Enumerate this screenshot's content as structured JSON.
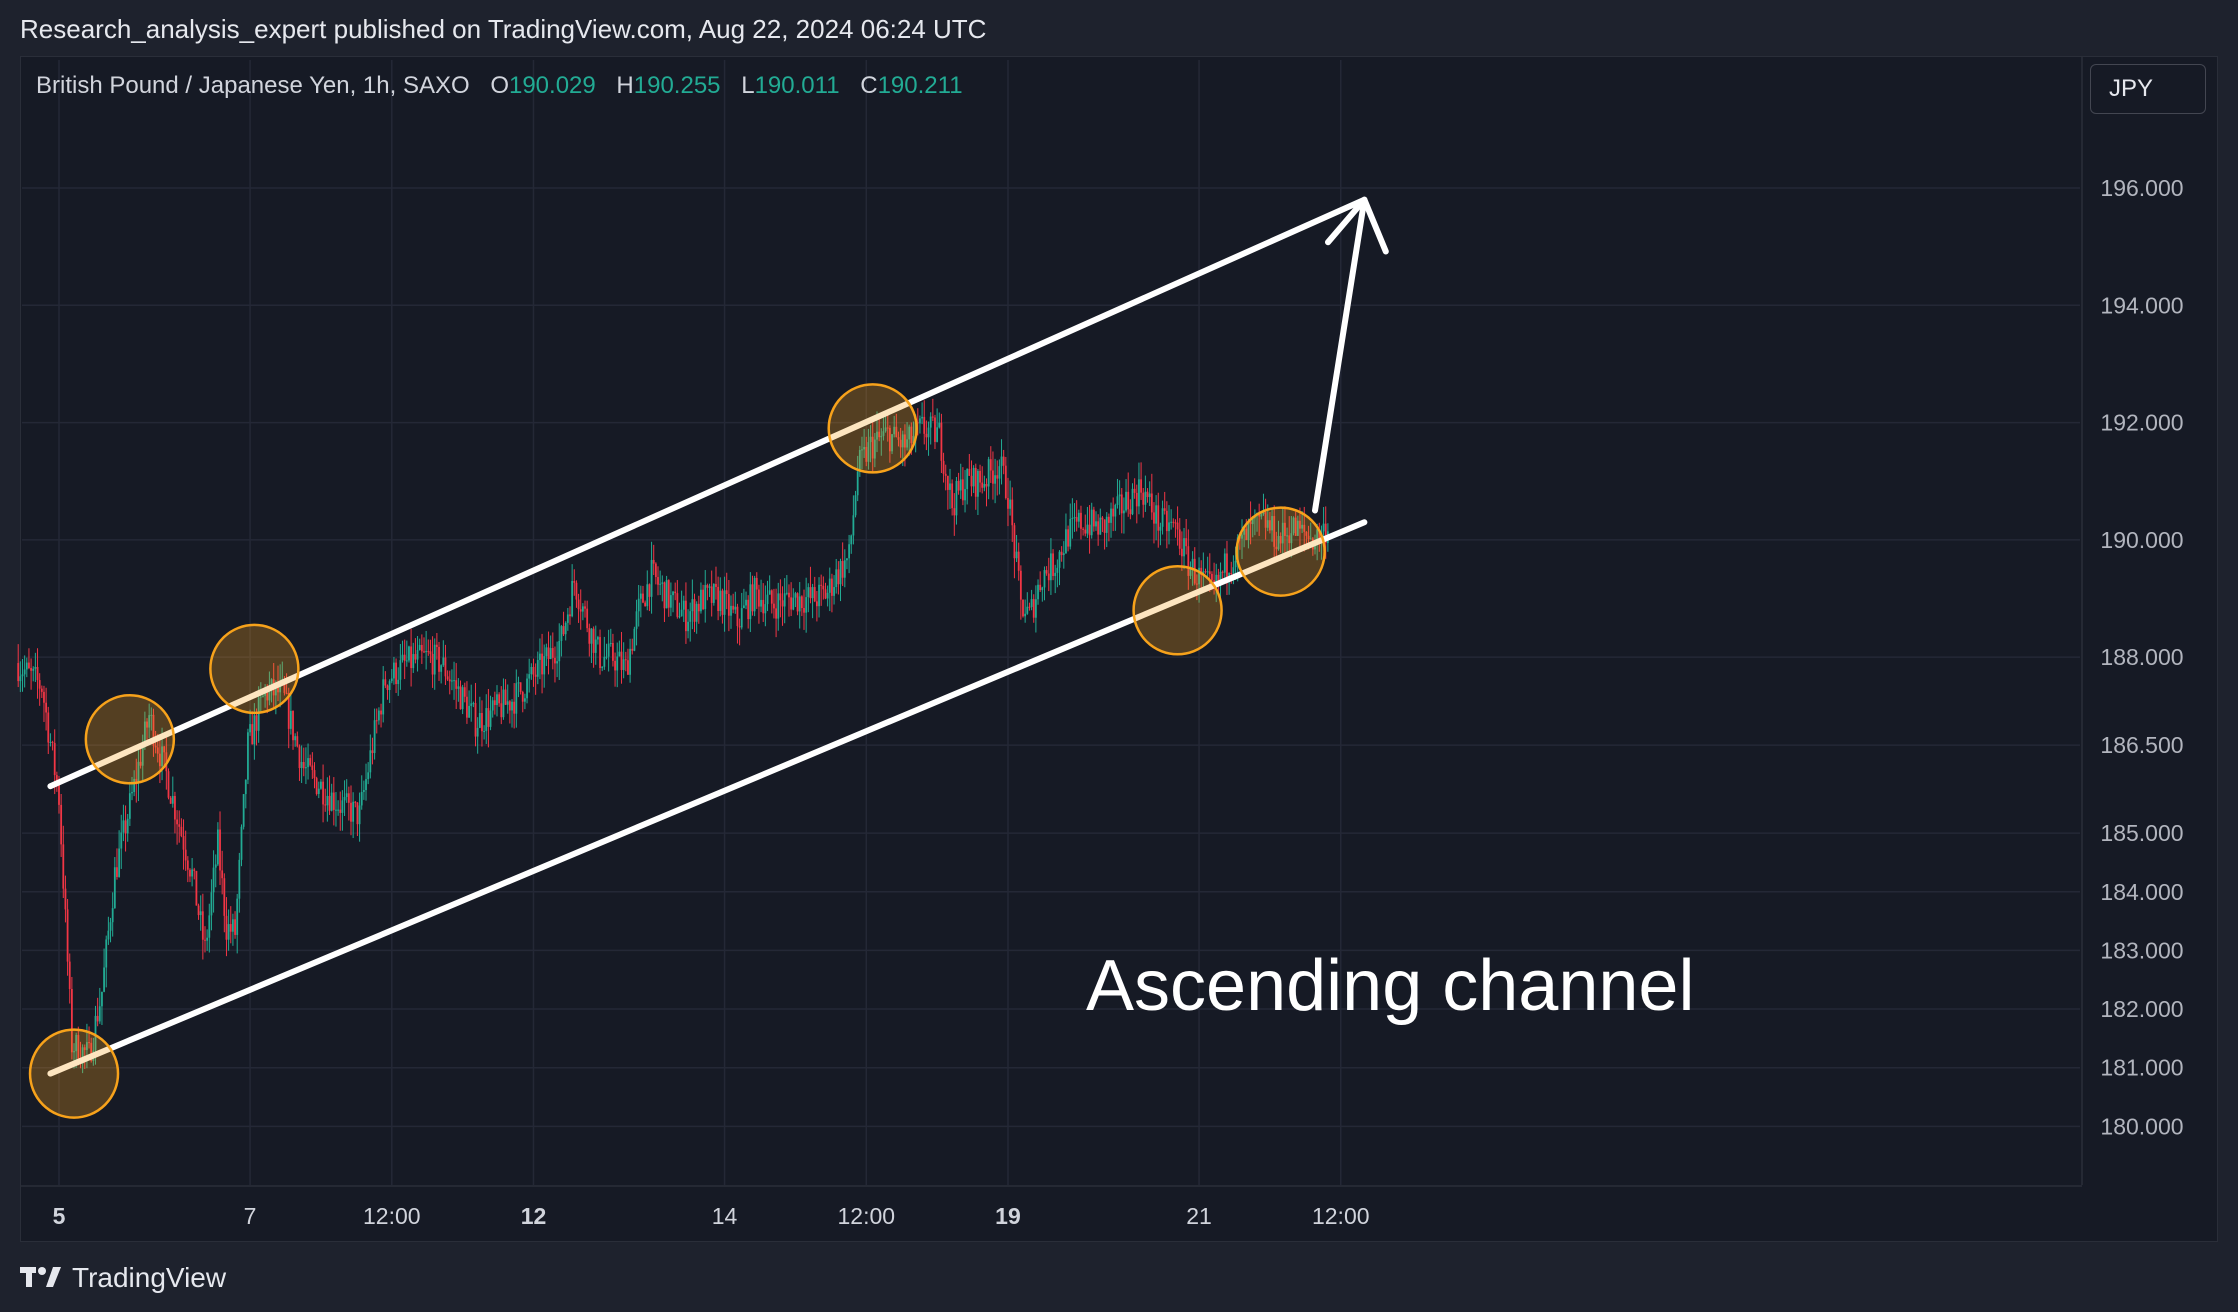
{
  "header": {
    "published": "Research_analysis_expert published on TradingView.com, Aug 22, 2024 06:24 UTC"
  },
  "legend": {
    "symbol": "British Pound / Japanese Yen, 1h, SAXO",
    "o_label": "O",
    "o_value": "190.029",
    "h_label": "H",
    "h_value": "190.255",
    "l_label": "L",
    "l_value": "190.011",
    "c_label": "C",
    "c_value": "190.211"
  },
  "currency_button": "JPY",
  "annotation": "Ascending channel",
  "brand": {
    "name": "TradingView"
  },
  "colors": {
    "background": "#161a25",
    "up": "#22ab94",
    "down": "#f23645",
    "channel": "#ffffff",
    "circle": "#f7a21b"
  },
  "chart_data": {
    "type": "candlestick",
    "title": "British Pound / Japanese Yen, 1h, SAXO",
    "ylim": [
      179.0,
      197.5
    ],
    "y_ticks": [
      "196.000",
      "194.000",
      "192.000",
      "190.000",
      "188.000",
      "186.500",
      "185.000",
      "184.000",
      "183.000",
      "182.000",
      "181.000",
      "180.000"
    ],
    "y_tick_values": [
      196.0,
      194.0,
      192.0,
      190.0,
      188.0,
      186.5,
      185.0,
      184.0,
      183.0,
      182.0,
      181.0,
      180.0
    ],
    "x_ticks": [
      "5",
      "7",
      "12:00",
      "12",
      "14",
      "12:00",
      "19",
      "21",
      "12:00"
    ],
    "x_tick_bold": [
      true,
      false,
      false,
      true,
      false,
      false,
      true,
      false,
      false
    ],
    "x_tick_index": [
      19,
      108,
      174,
      240,
      329,
      395,
      461,
      550,
      616
    ],
    "price_path": [
      [
        0,
        187.9
      ],
      [
        12,
        187.5
      ],
      [
        20,
        185.6
      ],
      [
        26,
        181.4
      ],
      [
        34,
        181.2
      ],
      [
        40,
        182.3
      ],
      [
        46,
        184.3
      ],
      [
        55,
        185.8
      ],
      [
        62,
        187.0
      ],
      [
        70,
        186.0
      ],
      [
        82,
        184.3
      ],
      [
        88,
        183.0
      ],
      [
        94,
        184.8
      ],
      [
        98,
        183.4
      ],
      [
        102,
        183.3
      ],
      [
        108,
        186.5
      ],
      [
        116,
        187.4
      ],
      [
        124,
        187.4
      ],
      [
        134,
        186.1
      ],
      [
        142,
        185.8
      ],
      [
        150,
        185.5
      ],
      [
        160,
        185.3
      ],
      [
        166,
        186.5
      ],
      [
        172,
        187.6
      ],
      [
        182,
        187.9
      ],
      [
        192,
        188.0
      ],
      [
        198,
        187.9
      ],
      [
        208,
        187.3
      ],
      [
        214,
        186.9
      ],
      [
        220,
        187.0
      ],
      [
        232,
        187.3
      ],
      [
        244,
        187.8
      ],
      [
        254,
        188.3
      ],
      [
        260,
        189.3
      ],
      [
        266,
        188.6
      ],
      [
        272,
        188.0
      ],
      [
        278,
        188.0
      ],
      [
        284,
        187.8
      ],
      [
        290,
        188.8
      ],
      [
        296,
        189.4
      ],
      [
        304,
        189.0
      ],
      [
        312,
        188.7
      ],
      [
        320,
        189.0
      ],
      [
        328,
        189.0
      ],
      [
        336,
        188.6
      ],
      [
        344,
        189.1
      ],
      [
        352,
        188.9
      ],
      [
        360,
        189.0
      ],
      [
        366,
        189.0
      ],
      [
        372,
        189.0
      ],
      [
        378,
        189.1
      ],
      [
        382,
        189.4
      ],
      [
        388,
        189.7
      ],
      [
        392,
        191.2
      ],
      [
        398,
        191.6
      ],
      [
        406,
        191.8
      ],
      [
        414,
        191.6
      ],
      [
        422,
        191.9
      ],
      [
        430,
        191.8
      ],
      [
        436,
        190.6
      ],
      [
        442,
        191.0
      ],
      [
        450,
        191.0
      ],
      [
        458,
        191.3
      ],
      [
        462,
        190.8
      ],
      [
        468,
        188.9
      ],
      [
        472,
        188.7
      ],
      [
        478,
        189.4
      ],
      [
        484,
        189.6
      ],
      [
        490,
        190.1
      ],
      [
        496,
        190.3
      ],
      [
        506,
        190.2
      ],
      [
        516,
        190.6
      ],
      [
        524,
        190.9
      ],
      [
        532,
        190.3
      ],
      [
        540,
        190.2
      ],
      [
        546,
        189.6
      ],
      [
        552,
        189.3
      ],
      [
        558,
        189.1
      ],
      [
        564,
        189.6
      ],
      [
        570,
        189.9
      ],
      [
        576,
        190.2
      ],
      [
        582,
        190.3
      ],
      [
        588,
        190.0
      ],
      [
        594,
        190.2
      ],
      [
        600,
        190.1
      ],
      [
        605,
        190.0
      ],
      [
        610,
        190.2
      ]
    ],
    "channel_upper": {
      "start": {
        "index": 15,
        "price": 185.8
      },
      "end": {
        "index": 627,
        "price": 195.8
      }
    },
    "channel_lower": {
      "start": {
        "index": 15,
        "price": 180.9
      },
      "end": {
        "index": 627,
        "price": 190.3
      }
    },
    "arrow": {
      "start": {
        "index": 604,
        "price": 190.5
      },
      "end": {
        "index": 627,
        "price": 195.8
      }
    },
    "touch_points": [
      {
        "index": 26,
        "price": 180.9
      },
      {
        "index": 52,
        "price": 186.6
      },
      {
        "index": 110,
        "price": 187.8
      },
      {
        "index": 398,
        "price": 191.9
      },
      {
        "index": 540,
        "price": 188.8
      },
      {
        "index": 588,
        "price": 189.8
      }
    ]
  }
}
